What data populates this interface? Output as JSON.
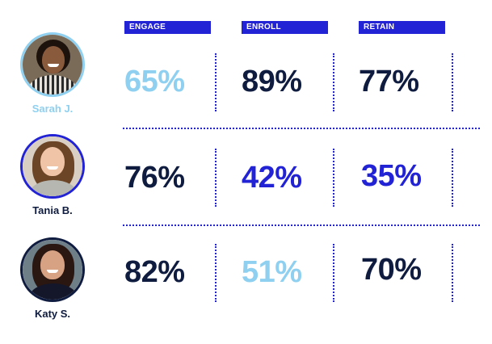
{
  "headers": {
    "engage": "ENGAGE",
    "enroll": "ENROLL",
    "retain": "RETAIN"
  },
  "people": [
    {
      "name": "Sarah J.",
      "engage": "65%",
      "enroll": "89%",
      "retain": "77%"
    },
    {
      "name": "Tania B.",
      "engage": "76%",
      "enroll": "42%",
      "retain": "35%"
    },
    {
      "name": "Katy S.",
      "engage": "82%",
      "enroll": "51%",
      "retain": "70%"
    }
  ],
  "colors": {
    "header_bg": "#2323d6",
    "accent_blue": "#2323d6",
    "light_blue": "#8fd0f0",
    "dark_navy": "#0f1c3f"
  }
}
